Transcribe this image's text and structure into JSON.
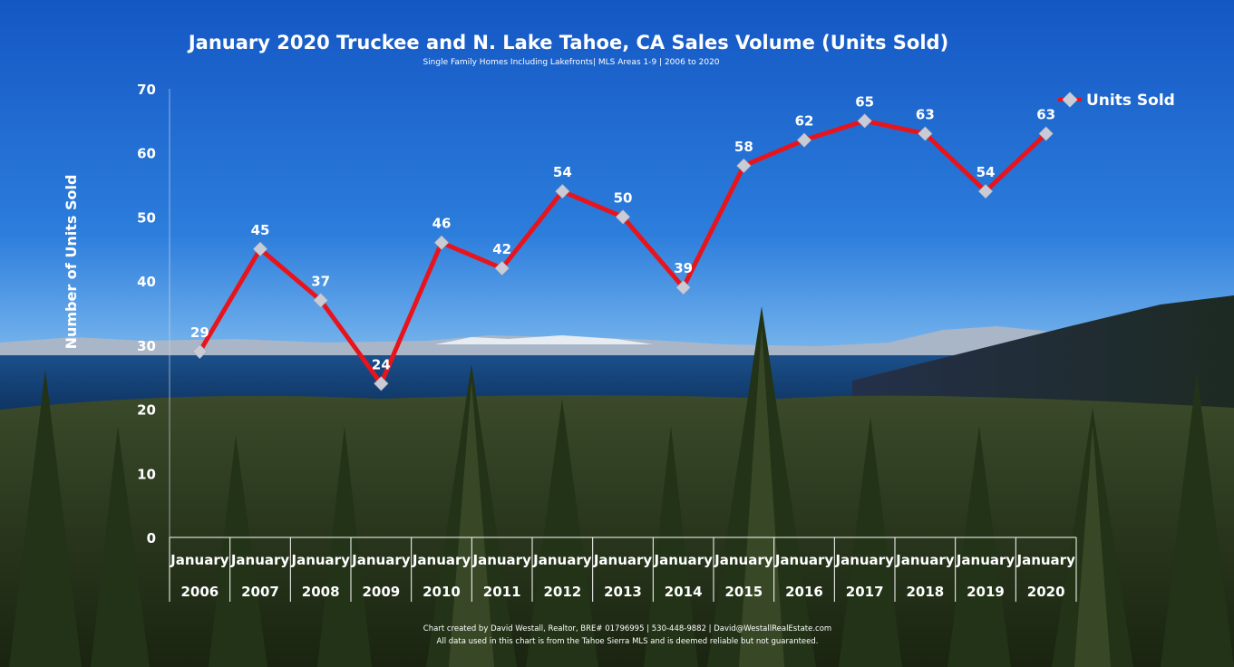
{
  "chart_data": {
    "type": "line",
    "title": "January 2020 Truckee and N. Lake Tahoe, CA Sales Volume (Units Sold)",
    "subtitle": "Single Family Homes Including Lakefronts| MLS Areas 1-9 | 2006 to 2020",
    "ylabel": "Number of Units Sold",
    "ylim": [
      0,
      70
    ],
    "yticks": [
      0,
      10,
      20,
      30,
      40,
      50,
      60,
      70
    ],
    "grid": false,
    "legend_position": "top-right",
    "categories": [
      {
        "month": "January",
        "year": "2006"
      },
      {
        "month": "January",
        "year": "2007"
      },
      {
        "month": "January",
        "year": "2008"
      },
      {
        "month": "January",
        "year": "2009"
      },
      {
        "month": "January",
        "year": "2010"
      },
      {
        "month": "January",
        "year": "2011"
      },
      {
        "month": "January",
        "year": "2012"
      },
      {
        "month": "January",
        "year": "2013"
      },
      {
        "month": "January",
        "year": "2014"
      },
      {
        "month": "January",
        "year": "2015"
      },
      {
        "month": "January",
        "year": "2016"
      },
      {
        "month": "January",
        "year": "2017"
      },
      {
        "month": "January",
        "year": "2018"
      },
      {
        "month": "January",
        "year": "2019"
      },
      {
        "month": "January",
        "year": "2020"
      }
    ],
    "series": [
      {
        "name": "Units Sold",
        "values": [
          29,
          45,
          37,
          24,
          46,
          42,
          54,
          50,
          39,
          58,
          62,
          65,
          63,
          54,
          63
        ],
        "line_color": "#e8141c",
        "marker_color": "#c9ccd6"
      }
    ]
  },
  "footer": {
    "line1": "Chart created by David Westall, Realtor, BRE# 01796995 | 530-448-9882 | David@WestallRealEstate.com",
    "line2": "All data used in this chart is from the Tahoe Sierra MLS and is deemed reliable but  not guaranteed."
  }
}
